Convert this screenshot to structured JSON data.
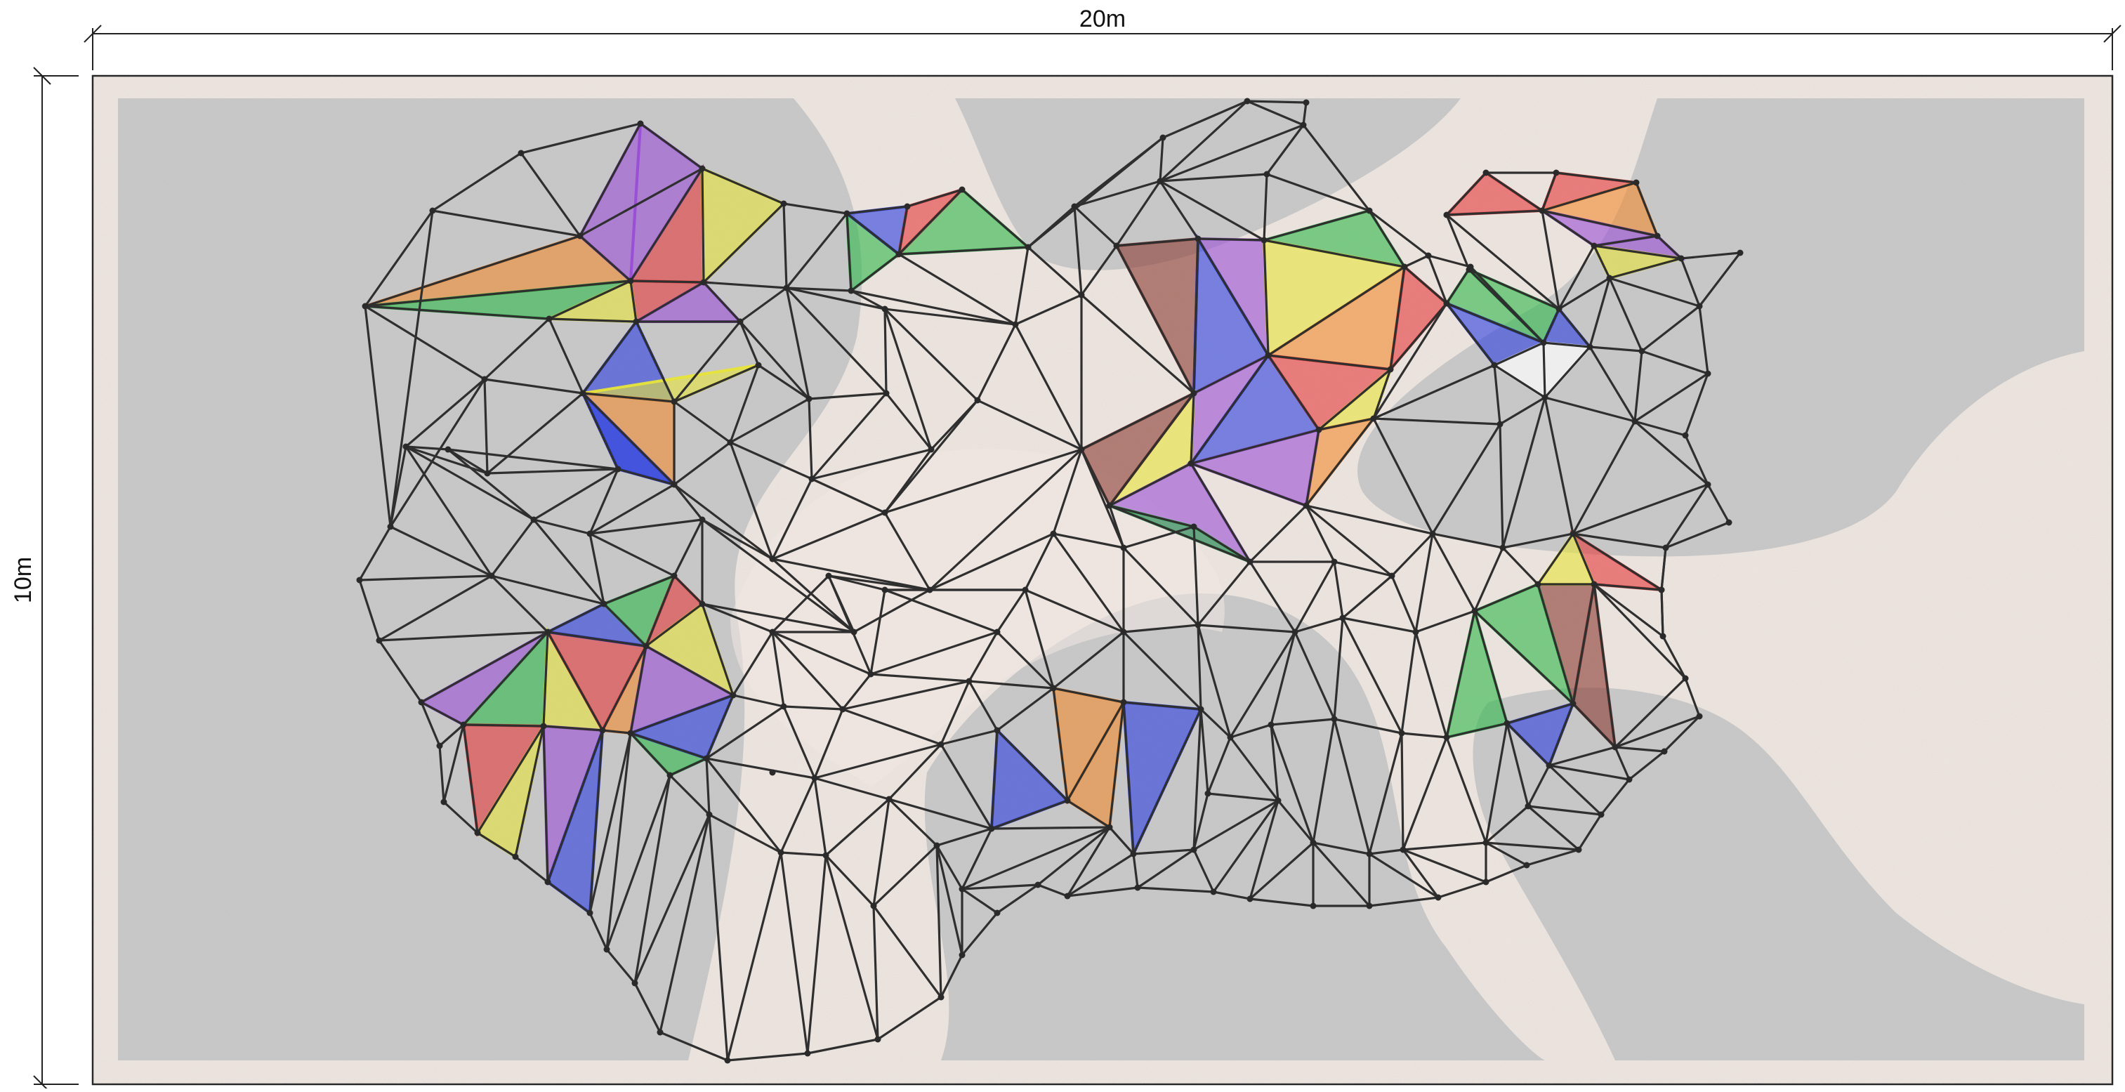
{
  "dimensions": {
    "width_label": "20m",
    "height_label": "10m"
  },
  "colors": {
    "background_page": "#ffffff",
    "ground": "#f0e7e1",
    "gravel": "#c9c9c9",
    "gravel_dark": "#b8b8b8",
    "net_line": "#2f2f2f",
    "panel_red": "#e5393a",
    "panel_green": "#2fb84a",
    "panel_blue": "#2b3de0",
    "panel_yellow": "#e7e43a",
    "panel_orange": "#f28a2e",
    "panel_purple": "#9a4fd6",
    "panel_brown": "#8a3a32",
    "panel_white": "#ffffff",
    "panel_beige": "#e9dcd2"
  }
}
